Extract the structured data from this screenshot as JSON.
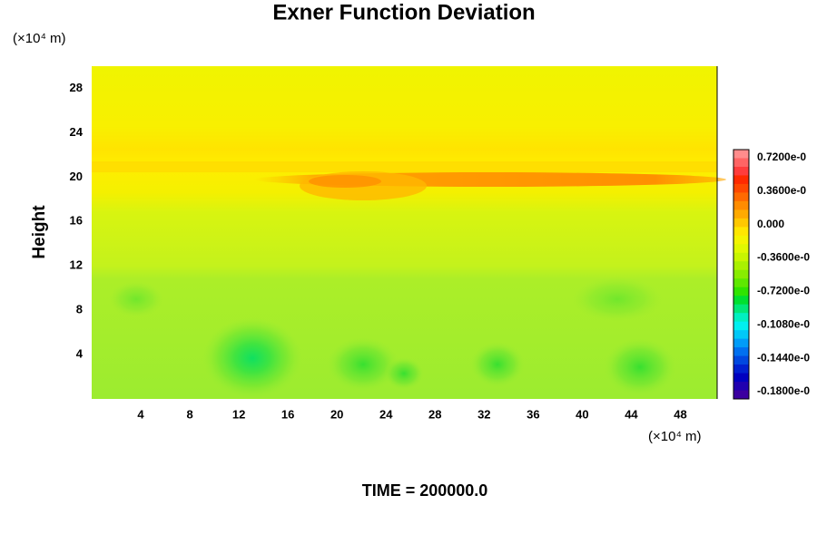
{
  "chart_data": {
    "type": "contour",
    "title": "Exner Function Deviation",
    "xlabel": "(×10⁴ m)",
    "ylabel": "Height",
    "yunit": "(×10⁴ m)",
    "footer": "TIME = 200000.0",
    "xlim": [
      0,
      51
    ],
    "ylim": [
      0,
      30
    ],
    "xticks": [
      4,
      8,
      12,
      16,
      20,
      24,
      28,
      32,
      36,
      40,
      44,
      48
    ],
    "yticks": [
      4,
      8,
      12,
      16,
      20,
      24,
      28
    ],
    "colorbar_labels": [
      "0.7200e-0",
      "0.3600e-0",
      "0.000",
      "-0.3600e-0",
      "-0.7200e-0",
      "-0.1080e-0",
      "-0.1440e-0",
      "-0.1800e-0"
    ],
    "colorbar_colors": [
      "#ff8c8c",
      "#ff6464",
      "#ff3c3c",
      "#ff2a00",
      "#ff4800",
      "#ff6a00",
      "#ff8c00",
      "#ffaa00",
      "#ffc800",
      "#ffe600",
      "#f4f400",
      "#e0f800",
      "#c8f500",
      "#aaf000",
      "#88ec00",
      "#5ee800",
      "#30e400",
      "#00e030",
      "#00e878",
      "#00f0c0",
      "#00f0f0",
      "#00c8f8",
      "#009cf8",
      "#0070f0",
      "#0048e0",
      "#0020d0",
      "#0000c0",
      "#2000b0",
      "#3c00a0"
    ]
  }
}
